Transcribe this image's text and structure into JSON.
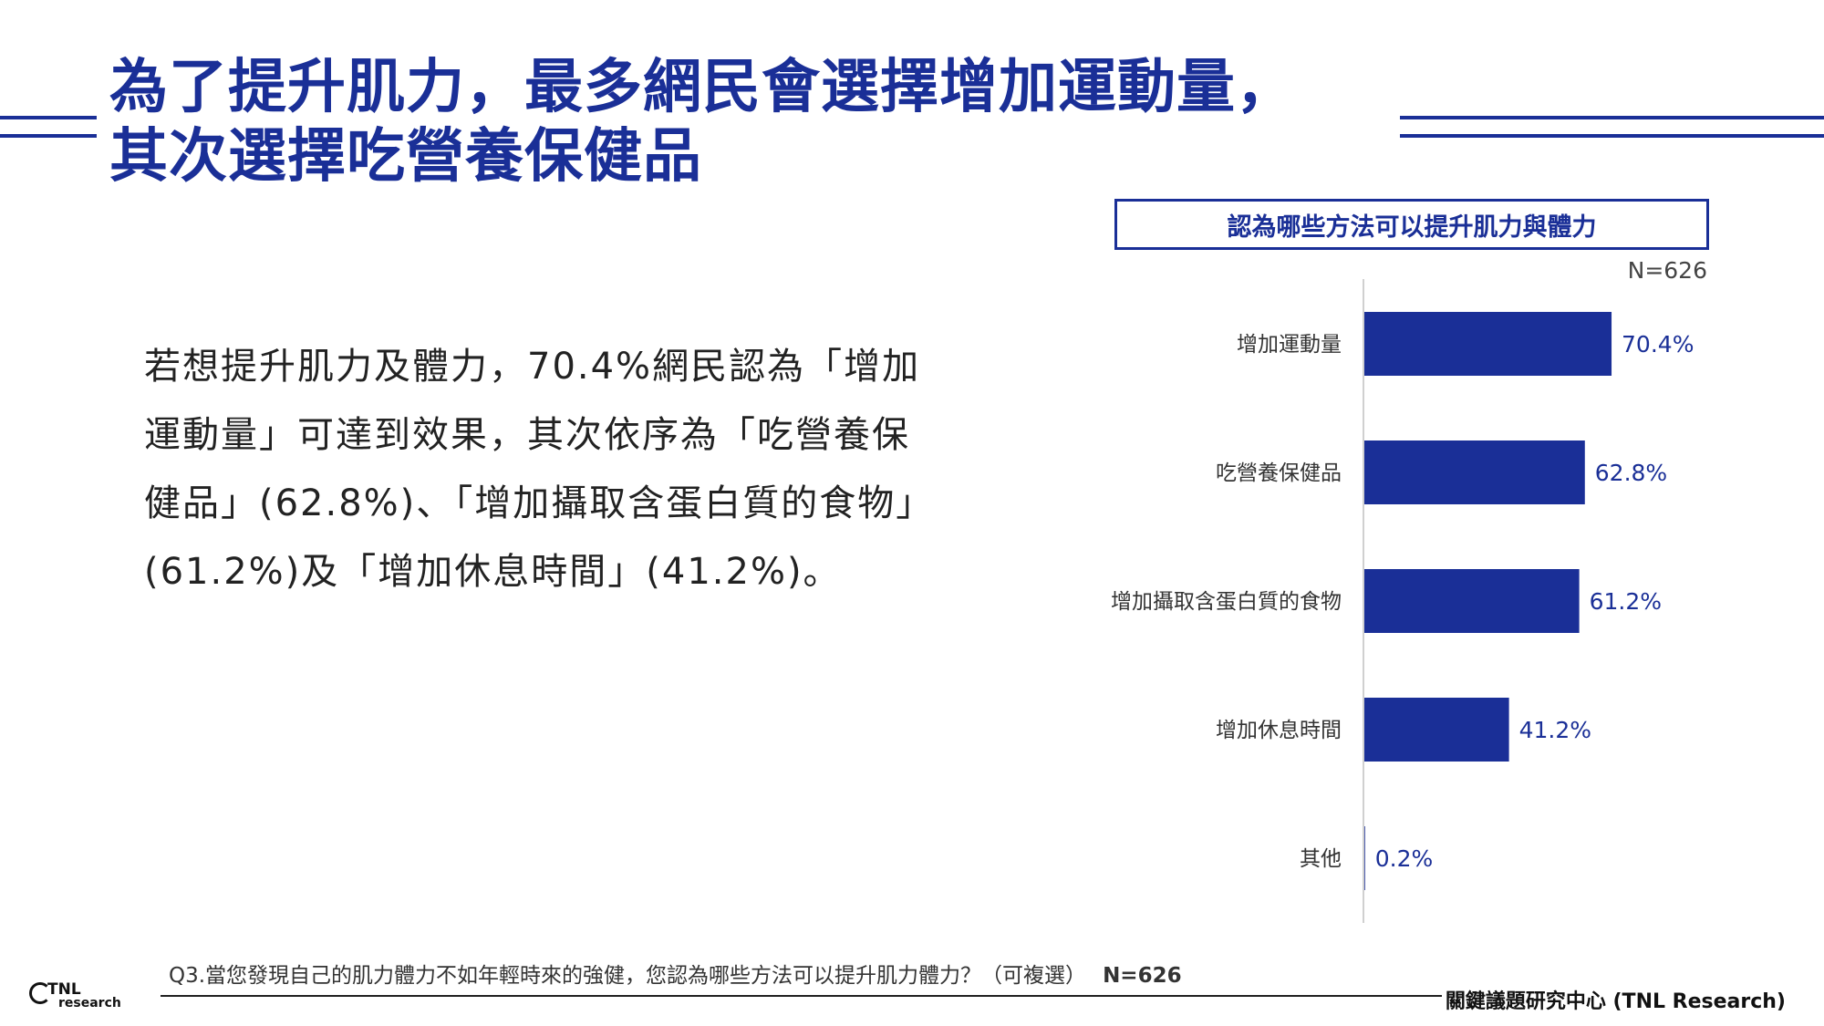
{
  "title": {
    "line1": "為了提升肌力，最多網民會選擇增加運動量，",
    "line2": "其次選擇吃營養保健品"
  },
  "description": "若想提升肌力及體力，70.4%網民認為「增加運動量」可達到效果，其次依序為「吃營養保健品」(62.8%)、「增加攝取含蛋白質的食物」(61.2%)及「增加休息時間」(41.2%)。",
  "chart_data": {
    "type": "bar",
    "orientation": "horizontal",
    "title": "認為哪些方法可以提升肌力與體力",
    "sample_size": "N=626",
    "categories": [
      "增加運動量",
      "吃營養保健品",
      "增加攝取含蛋白質的食物",
      "增加休息時間",
      "其他"
    ],
    "values": [
      70.4,
      62.8,
      61.2,
      41.2,
      0.2
    ],
    "value_labels": [
      "70.4%",
      "62.8%",
      "61.2%",
      "41.2%",
      "0.2%"
    ],
    "unit": "%",
    "xlim": [
      0,
      100
    ],
    "bar_color": "#1a2f97",
    "grid": false,
    "legend": "none"
  },
  "footnote": {
    "question": "Q3.當您發現自己的肌力體力不如年輕時來的強健，您認為哪些方法可以提升肌力體力？（可複選）",
    "n": "N=626"
  },
  "footer": {
    "org": "關鍵議題研究中心 (TNL Research)",
    "logo_text": "TNL research"
  },
  "colors": {
    "accent": "#1a2f97",
    "text": "#222222"
  }
}
